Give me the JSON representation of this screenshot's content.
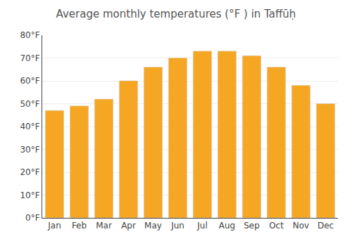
{
  "chart_data": {
    "type": "bar",
    "title": "Average monthly temperatures (°F ) in Taffūḥ",
    "categories": [
      "Jan",
      "Feb",
      "Mar",
      "Apr",
      "May",
      "Jun",
      "Jul",
      "Aug",
      "Sep",
      "Oct",
      "Nov",
      "Dec"
    ],
    "values": [
      47,
      49,
      52,
      60,
      66,
      70,
      73,
      73,
      71,
      66,
      58,
      50
    ],
    "color": "#F5A623",
    "ylim": [
      0,
      80
    ],
    "yticks": [
      {
        "value": 0,
        "label": "0°F"
      },
      {
        "value": 10,
        "label": "10°F"
      },
      {
        "value": 20,
        "label": "20°F"
      },
      {
        "value": 30,
        "label": "30°F"
      },
      {
        "value": 40,
        "label": "40°F"
      },
      {
        "value": 50,
        "label": "50°F"
      },
      {
        "value": 60,
        "label": "60°F"
      },
      {
        "value": 70,
        "label": "70°F"
      },
      {
        "value": 80,
        "label": "80°F"
      }
    ],
    "grid": true
  }
}
